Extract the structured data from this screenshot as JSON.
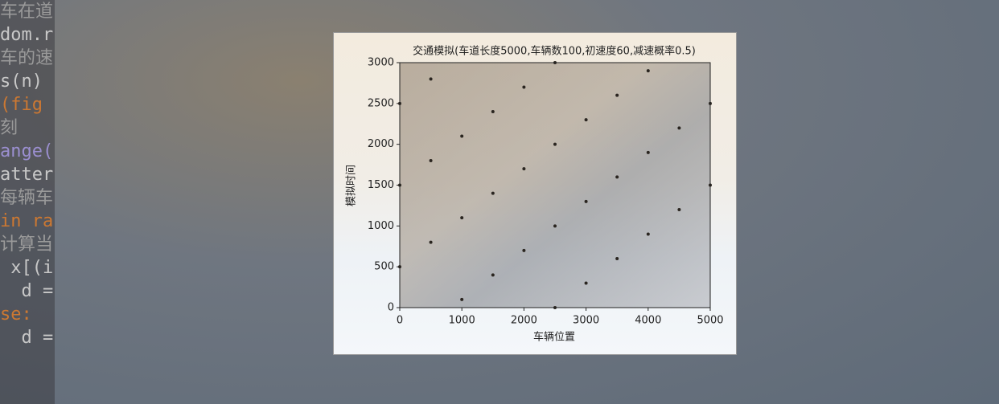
{
  "editor": {
    "lines": [
      "车在道",
      "dom.r",
      "车的速",
      "s(n)",
      "(fig",
      "刻",
      "ange(",
      "atter",
      "每辆车",
      "in ra",
      "计算当",
      " x[(i",
      "  d =",
      "se:",
      "  d ="
    ]
  },
  "chart_data": {
    "type": "scatter",
    "title": "交通模拟(车道长度5000,车辆数100,初速度60,减速概率0.5)",
    "xlabel": "车辆位置",
    "ylabel": "模拟时间",
    "x": [
      2500,
      3000,
      3500,
      4000,
      4500,
      5000,
      1000,
      1500,
      2000,
      2500,
      3000,
      3500,
      4000,
      4500,
      5000,
      0,
      500,
      1000,
      1500,
      2000,
      2500,
      3000,
      3500,
      4000,
      0,
      500,
      1000,
      1500,
      2000,
      2500,
      0,
      500
    ],
    "y": [
      0,
      300,
      600,
      900,
      1200,
      1500,
      100,
      400,
      700,
      1000,
      1300,
      1600,
      1900,
      2200,
      2500,
      500,
      800,
      1100,
      1400,
      1700,
      2000,
      2300,
      2600,
      2900,
      1500,
      1800,
      2100,
      2400,
      2700,
      3000,
      2500,
      2800
    ],
    "color": "#2a2520",
    "xlim": [
      0,
      5000
    ],
    "ylim": [
      0,
      3000
    ],
    "xticks": [
      0,
      1000,
      2000,
      3000,
      4000,
      5000
    ],
    "yticks": [
      0,
      500,
      1000,
      1500,
      2000,
      2500,
      3000
    ]
  }
}
